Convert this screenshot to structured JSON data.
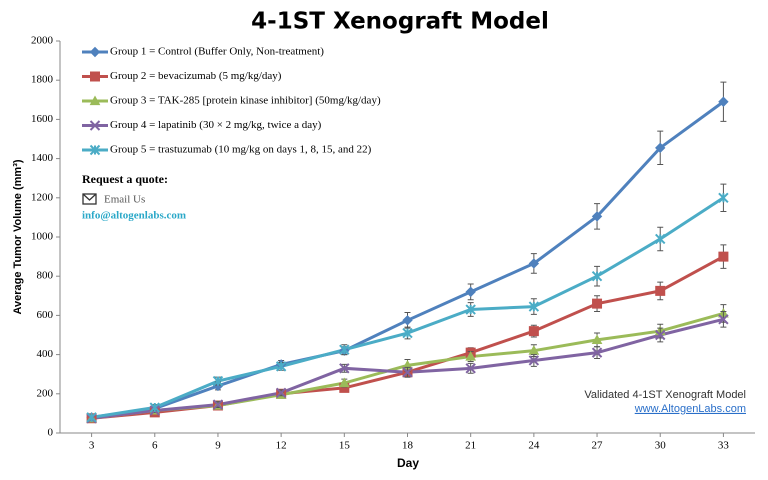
{
  "chart_data": {
    "type": "line",
    "title": "4-1ST Xenograft Model",
    "x_label": "Day",
    "y_label": "Average Tumor Volume (mm³)",
    "x": [
      3,
      6,
      9,
      12,
      15,
      18,
      21,
      24,
      27,
      30,
      33
    ],
    "xlim": [
      1.5,
      34.5
    ],
    "xticks": [
      3,
      6,
      9,
      12,
      15,
      18,
      21,
      24,
      27,
      30,
      33
    ],
    "ylim": [
      0,
      2000
    ],
    "yticks": [
      0,
      200,
      400,
      600,
      800,
      1000,
      1200,
      1400,
      1600,
      1800,
      2000
    ],
    "legend_position": "upper left",
    "series": [
      {
        "name": "Group 1 = Control (Buffer Only, Non-treatment)",
        "color": "#4f81bd",
        "marker": "diamond",
        "values": [
          80,
          125,
          240,
          350,
          420,
          575,
          720,
          865,
          1105,
          1455,
          1690
        ],
        "errors": [
          10,
          15,
          20,
          20,
          20,
          40,
          40,
          50,
          65,
          85,
          100
        ]
      },
      {
        "name": "Group 2 = bevacizumab (5 mg/kg/day)",
        "color": "#c0504d",
        "marker": "square",
        "values": [
          75,
          105,
          140,
          200,
          230,
          310,
          410,
          520,
          660,
          725,
          900
        ],
        "errors": [
          10,
          10,
          15,
          15,
          15,
          25,
          25,
          30,
          40,
          45,
          60
        ]
      },
      {
        "name": "Group 3 =  TAK-285 [protein kinase inhibitor] (50mg/kg/day)",
        "color": "#9bbb59",
        "marker": "triangle",
        "values": [
          75,
          115,
          140,
          195,
          255,
          345,
          390,
          420,
          475,
          520,
          610
        ],
        "errors": [
          10,
          10,
          15,
          15,
          20,
          30,
          25,
          30,
          35,
          35,
          45
        ]
      },
      {
        "name": "Group 4 =  lapatinib (30 × 2 mg/kg, twice a day)",
        "color": "#8064a2",
        "marker": "x",
        "values": [
          75,
          115,
          145,
          205,
          330,
          310,
          330,
          370,
          410,
          500,
          580
        ],
        "errors": [
          10,
          10,
          15,
          15,
          20,
          25,
          25,
          30,
          30,
          35,
          40
        ]
      },
      {
        "name": "Group 5 = trastuzumab (10 mg/kg on days 1, 8, 15, and 22)",
        "color": "#4bacc6",
        "marker": "star",
        "values": [
          80,
          130,
          265,
          340,
          425,
          510,
          630,
          645,
          800,
          990,
          1200
        ],
        "errors": [
          10,
          15,
          20,
          20,
          25,
          30,
          35,
          40,
          50,
          60,
          70
        ]
      }
    ],
    "annotations": {
      "quote": "Request a quote:",
      "email_button": "Email Us",
      "email": "info@altogenlabs.com",
      "validated": "Validated 4-1ST Xenograft Model",
      "website": "www.AltogenLabs.com"
    }
  }
}
